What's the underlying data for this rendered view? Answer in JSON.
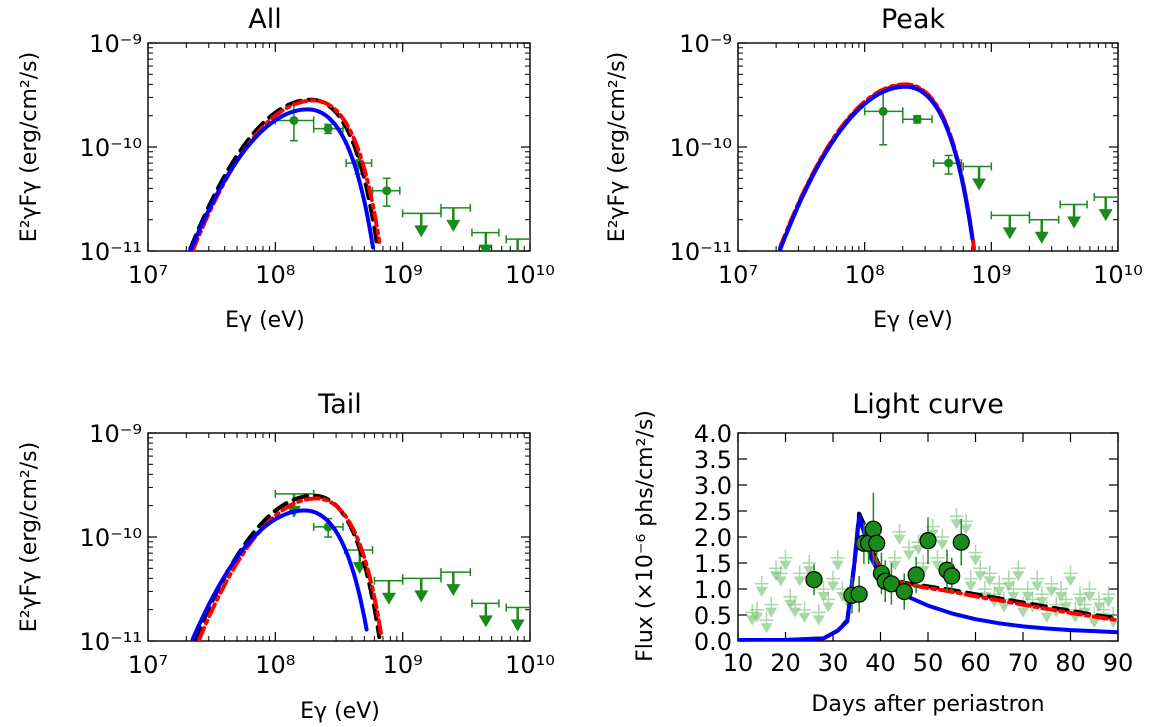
{
  "colors": {
    "data_green": "#1a8a1a",
    "ul_green_light": "#6fbf6f",
    "model_black": "#000000",
    "model_red": "#ff0000",
    "model_blue": "#0000ff"
  },
  "chart_data": [
    {
      "type": "line",
      "title": "All",
      "xlabel": "Eγ (eV)",
      "ylabel": "E²γFγ (erg/cm²/s)",
      "x_scale": "log",
      "y_scale": "log",
      "xlim": [
        10000000.0,
        10000000000.0
      ],
      "ylim": [
        1e-11,
        1e-09
      ],
      "xticklabels": [
        "10⁷",
        "10⁸",
        "10⁹",
        "10¹⁰"
      ],
      "yticklabels": [
        "10⁻¹¹",
        "10⁻¹⁰",
        "10⁻⁹"
      ],
      "data_points": [
        {
          "x": 140000000.0,
          "y": 1.8e-10,
          "xerr": [
            100000000.0,
            200000000.0
          ],
          "yerr": [
            1.15e-10,
            2.6e-10
          ],
          "upper_limit": false
        },
        {
          "x": 260000000.0,
          "y": 1.5e-10,
          "xerr": [
            200000000.0,
            340000000.0
          ],
          "yerr": [
            1.35e-10,
            1.65e-10
          ],
          "upper_limit": false
        },
        {
          "x": 450000000.0,
          "y": 7e-11,
          "xerr": [
            360000000.0,
            570000000.0
          ],
          "yerr": [
            5.5e-11,
            8.5e-11
          ],
          "upper_limit": false
        },
        {
          "x": 750000000.0,
          "y": 3.8e-11,
          "xerr": [
            580000000.0,
            950000000.0
          ],
          "yerr": [
            2.7e-11,
            5e-11
          ],
          "upper_limit": false
        },
        {
          "x": 1400000000.0,
          "y": 2.3e-11,
          "xerr": [
            1000000000.0,
            2000000000.0
          ],
          "yerr": null,
          "upper_limit": true
        },
        {
          "x": 2500000000.0,
          "y": 2.6e-11,
          "xerr": [
            2000000000.0,
            3400000000.0
          ],
          "yerr": null,
          "upper_limit": true
        },
        {
          "x": 4500000000.0,
          "y": 1.5e-11,
          "xerr": [
            3500000000.0,
            5700000000.0
          ],
          "yerr": null,
          "upper_limit": true
        },
        {
          "x": 8000000000.0,
          "y": 1.3e-11,
          "xerr": [
            6500000000.0,
            10000000000.0
          ],
          "yerr": null,
          "upper_limit": true
        }
      ],
      "series": [
        {
          "color": "#000000",
          "style": "dashed",
          "peak_x": 190000000.0,
          "peak_y": 2.85e-10
        },
        {
          "color": "#ff0000",
          "style": "dashdot",
          "peak_x": 200000000.0,
          "peak_y": 2.8e-10
        },
        {
          "color": "#0000ff",
          "style": "solid",
          "peak_x": 180000000.0,
          "peak_y": 2.3e-10
        }
      ]
    },
    {
      "type": "line",
      "title": "Peak",
      "xlabel": "Eγ (eV)",
      "ylabel": "E²γFγ (erg/cm²/s)",
      "x_scale": "log",
      "y_scale": "log",
      "xlim": [
        10000000.0,
        10000000000.0
      ],
      "ylim": [
        1e-11,
        1e-09
      ],
      "xticklabels": [
        "10⁷",
        "10⁸",
        "10⁹",
        "10¹⁰"
      ],
      "yticklabels": [
        "10⁻¹¹",
        "10⁻¹⁰",
        "10⁻⁹"
      ],
      "data_points": [
        {
          "x": 140000000.0,
          "y": 2.2e-10,
          "xerr": [
            100000000.0,
            200000000.0
          ],
          "yerr": [
            1.05e-10,
            3.4e-10
          ],
          "upper_limit": false
        },
        {
          "x": 260000000.0,
          "y": 1.85e-10,
          "xerr": [
            200000000.0,
            340000000.0
          ],
          "yerr": [
            1.7e-10,
            2e-10
          ],
          "upper_limit": false
        },
        {
          "x": 460000000.0,
          "y": 7e-11,
          "xerr": [
            350000000.0,
            580000000.0
          ],
          "yerr": [
            5.5e-11,
            8.3e-11
          ],
          "upper_limit": false
        },
        {
          "x": 800000000.0,
          "y": 6.5e-11,
          "xerr": [
            600000000.0,
            1000000000.0
          ],
          "yerr": null,
          "upper_limit": true
        },
        {
          "x": 1400000000.0,
          "y": 2.2e-11,
          "xerr": [
            1000000000.0,
            2000000000.0
          ],
          "yerr": null,
          "upper_limit": true
        },
        {
          "x": 2500000000.0,
          "y": 2e-11,
          "xerr": [
            2000000000.0,
            3400000000.0
          ],
          "yerr": null,
          "upper_limit": true
        },
        {
          "x": 4500000000.0,
          "y": 2.8e-11,
          "xerr": [
            3500000000.0,
            5700000000.0
          ],
          "yerr": null,
          "upper_limit": true
        },
        {
          "x": 8000000000.0,
          "y": 3.3e-11,
          "xerr": [
            6500000000.0,
            10000000000.0
          ],
          "yerr": null,
          "upper_limit": true
        }
      ],
      "series": [
        {
          "color": "#000000",
          "style": "dashed",
          "peak_x": 210000000.0,
          "peak_y": 3.9e-10
        },
        {
          "color": "#ff0000",
          "style": "dashdot",
          "peak_x": 210000000.0,
          "peak_y": 4e-10
        },
        {
          "color": "#0000ff",
          "style": "solid",
          "peak_x": 210000000.0,
          "peak_y": 3.8e-10
        }
      ]
    },
    {
      "type": "line",
      "title": "Tail",
      "xlabel": "Eγ (eV)",
      "ylabel": "E²γFγ (erg/cm²/s)",
      "x_scale": "log",
      "y_scale": "log",
      "xlim": [
        10000000.0,
        10000000000.0
      ],
      "ylim": [
        1e-11,
        1e-09
      ],
      "xticklabels": [
        "10⁷",
        "10⁸",
        "10⁹",
        "10¹⁰"
      ],
      "yticklabels": [
        "10⁻¹¹",
        "10⁻¹⁰",
        "10⁻⁹"
      ],
      "data_points": [
        {
          "x": 140000000.0,
          "y": 2.6e-10,
          "xerr": [
            100000000.0,
            200000000.0
          ],
          "yerr": null,
          "upper_limit": true
        },
        {
          "x": 260000000.0,
          "y": 1.25e-10,
          "xerr": [
            200000000.0,
            340000000.0
          ],
          "yerr": [
            1e-10,
            1.5e-10
          ],
          "upper_limit": false
        },
        {
          "x": 460000000.0,
          "y": 7.5e-11,
          "xerr": [
            350000000.0,
            580000000.0
          ],
          "yerr": null,
          "upper_limit": true
        },
        {
          "x": 780000000.0,
          "y": 3.8e-11,
          "xerr": [
            600000000.0,
            1000000000.0
          ],
          "yerr": null,
          "upper_limit": true
        },
        {
          "x": 1400000000.0,
          "y": 4e-11,
          "xerr": [
            1000000000.0,
            2000000000.0
          ],
          "yerr": null,
          "upper_limit": true
        },
        {
          "x": 2500000000.0,
          "y": 4.6e-11,
          "xerr": [
            2000000000.0,
            3400000000.0
          ],
          "yerr": null,
          "upper_limit": true
        },
        {
          "x": 4500000000.0,
          "y": 2.3e-11,
          "xerr": [
            3500000000.0,
            5700000000.0
          ],
          "yerr": null,
          "upper_limit": true
        },
        {
          "x": 8000000000.0,
          "y": 2.1e-11,
          "xerr": [
            6500000000.0,
            10000000000.0
          ],
          "yerr": null,
          "upper_limit": true
        }
      ],
      "series": [
        {
          "color": "#000000",
          "style": "dashed",
          "peak_x": 200000000.0,
          "peak_y": 2.5e-10
        },
        {
          "color": "#ff0000",
          "style": "dashdot",
          "peak_x": 210000000.0,
          "peak_y": 2.35e-10
        },
        {
          "color": "#0000ff",
          "style": "solid",
          "peak_x": 170000000.0,
          "peak_y": 1.8e-10
        }
      ]
    },
    {
      "type": "line",
      "title": "Light curve",
      "xlabel": "Days after periastron",
      "ylabel": "Flux (×10⁻⁶ phs/cm²/s)",
      "x_scale": "linear",
      "y_scale": "linear",
      "xlim": [
        10,
        90
      ],
      "ylim": [
        0,
        4.0
      ],
      "xticklabels": [
        "10",
        "20",
        "30",
        "40",
        "50",
        "60",
        "70",
        "80",
        "90"
      ],
      "yticklabels": [
        "0.0",
        "0.5",
        "1.0",
        "1.5",
        "2.0",
        "2.5",
        "3.0",
        "3.5",
        "4.0"
      ],
      "series": [
        {
          "color": "#000000",
          "style": "dashed",
          "x": [
            10,
            20,
            28,
            31,
            33,
            34.5,
            35.5,
            36.5,
            38,
            40,
            42,
            45,
            50,
            55,
            60,
            65,
            70,
            75,
            80,
            85,
            90
          ],
          "y": [
            0.02,
            0.02,
            0.05,
            0.2,
            0.4,
            1.5,
            2.45,
            2.25,
            1.8,
            1.4,
            1.22,
            1.12,
            1.05,
            0.98,
            0.9,
            0.82,
            0.74,
            0.66,
            0.58,
            0.5,
            0.44
          ]
        },
        {
          "color": "#ff0000",
          "style": "dashdot",
          "x": [
            10,
            20,
            28,
            31,
            33,
            34.5,
            35.5,
            36.5,
            38,
            40,
            42,
            45,
            50,
            55,
            60,
            65,
            70,
            75,
            80,
            85,
            90
          ],
          "y": [
            0.02,
            0.02,
            0.05,
            0.2,
            0.38,
            1.45,
            2.35,
            2.15,
            1.75,
            1.38,
            1.2,
            1.1,
            1.02,
            0.95,
            0.86,
            0.78,
            0.7,
            0.62,
            0.54,
            0.47,
            0.4
          ]
        },
        {
          "color": "#0000ff",
          "style": "solid",
          "x": [
            10,
            20,
            28,
            31,
            33,
            34.5,
            35.5,
            36.5,
            38,
            40,
            42,
            45,
            50,
            55,
            60,
            65,
            70,
            75,
            80,
            85,
            90
          ],
          "y": [
            0.02,
            0.02,
            0.05,
            0.2,
            0.38,
            1.5,
            2.4,
            2.1,
            1.6,
            1.25,
            1.05,
            0.88,
            0.68,
            0.53,
            0.42,
            0.34,
            0.28,
            0.24,
            0.21,
            0.19,
            0.17
          ]
        }
      ],
      "detections": [
        {
          "x": 26,
          "y": 1.18,
          "yerr": 0.3
        },
        {
          "x": 34,
          "y": 0.88,
          "yerr": 0.35
        },
        {
          "x": 35.5,
          "y": 0.9,
          "yerr": 0.35
        },
        {
          "x": 36.5,
          "y": 1.88,
          "yerr": 0.4
        },
        {
          "x": 37.5,
          "y": 1.88,
          "yerr": 0.4
        },
        {
          "x": 38.5,
          "y": 2.15,
          "yerr": 0.7
        },
        {
          "x": 39.2,
          "y": 1.88,
          "yerr": 0.4
        },
        {
          "x": 40.2,
          "y": 1.3,
          "yerr": 0.4
        },
        {
          "x": 41,
          "y": 1.15,
          "yerr": 0.4
        },
        {
          "x": 42.3,
          "y": 1.1,
          "yerr": 0.4
        },
        {
          "x": 45,
          "y": 0.95,
          "yerr": 0.35
        },
        {
          "x": 47.5,
          "y": 1.27,
          "yerr": 0.35
        },
        {
          "x": 50,
          "y": 1.93,
          "yerr": 0.45
        },
        {
          "x": 54,
          "y": 1.36,
          "yerr": 0.4
        },
        {
          "x": 55,
          "y": 1.25,
          "yerr": 0.35
        },
        {
          "x": 57,
          "y": 1.9,
          "yerr": 0.45
        }
      ],
      "upper_limits": [
        {
          "x": 13,
          "y": 0.55
        },
        {
          "x": 14,
          "y": 0.6
        },
        {
          "x": 15,
          "y": 1.1
        },
        {
          "x": 16,
          "y": 0.4
        },
        {
          "x": 17,
          "y": 0.7
        },
        {
          "x": 18,
          "y": 1.4
        },
        {
          "x": 19,
          "y": 1.3
        },
        {
          "x": 20,
          "y": 1.6
        },
        {
          "x": 21,
          "y": 0.85
        },
        {
          "x": 22,
          "y": 0.7
        },
        {
          "x": 23,
          "y": 1.3
        },
        {
          "x": 24,
          "y": 0.6
        },
        {
          "x": 25,
          "y": 1.5
        },
        {
          "x": 27,
          "y": 0.55
        },
        {
          "x": 28,
          "y": 1.0
        },
        {
          "x": 29,
          "y": 0.8
        },
        {
          "x": 30,
          "y": 1.2
        },
        {
          "x": 31,
          "y": 1.6
        },
        {
          "x": 32,
          "y": 1.0
        },
        {
          "x": 33,
          "y": 0.9
        },
        {
          "x": 43,
          "y": 1.6
        },
        {
          "x": 44,
          "y": 2.1
        },
        {
          "x": 46,
          "y": 1.8
        },
        {
          "x": 48,
          "y": 1.9
        },
        {
          "x": 49,
          "y": 1.5
        },
        {
          "x": 51,
          "y": 2.2
        },
        {
          "x": 52,
          "y": 1.6
        },
        {
          "x": 53,
          "y": 2.0
        },
        {
          "x": 56,
          "y": 2.4
        },
        {
          "x": 58,
          "y": 2.3
        },
        {
          "x": 59,
          "y": 1.2
        },
        {
          "x": 60,
          "y": 1.7
        },
        {
          "x": 61,
          "y": 1.4
        },
        {
          "x": 62,
          "y": 1.0
        },
        {
          "x": 63,
          "y": 1.3
        },
        {
          "x": 64,
          "y": 0.9
        },
        {
          "x": 65,
          "y": 1.1
        },
        {
          "x": 66,
          "y": 0.8
        },
        {
          "x": 67,
          "y": 1.2
        },
        {
          "x": 68,
          "y": 1.0
        },
        {
          "x": 69,
          "y": 1.4
        },
        {
          "x": 70,
          "y": 0.7
        },
        {
          "x": 71,
          "y": 1.0
        },
        {
          "x": 72,
          "y": 0.8
        },
        {
          "x": 73,
          "y": 1.2
        },
        {
          "x": 74,
          "y": 0.9
        },
        {
          "x": 75,
          "y": 0.6
        },
        {
          "x": 76,
          "y": 1.1
        },
        {
          "x": 77,
          "y": 0.7
        },
        {
          "x": 78,
          "y": 1.0
        },
        {
          "x": 79,
          "y": 0.8
        },
        {
          "x": 80,
          "y": 1.3
        },
        {
          "x": 81,
          "y": 0.6
        },
        {
          "x": 82,
          "y": 0.9
        },
        {
          "x": 83,
          "y": 0.7
        },
        {
          "x": 84,
          "y": 1.0
        },
        {
          "x": 85,
          "y": 0.5
        },
        {
          "x": 86,
          "y": 0.8
        },
        {
          "x": 87,
          "y": 0.6
        },
        {
          "x": 88,
          "y": 0.9
        },
        {
          "x": 89,
          "y": 0.5
        }
      ]
    }
  ]
}
